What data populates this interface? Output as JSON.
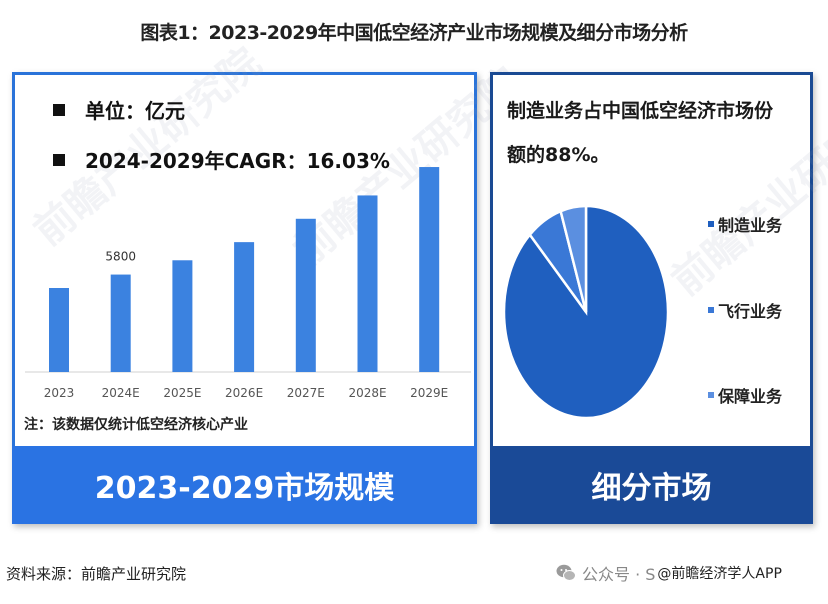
{
  "figure": {
    "title": "图表1：2023-2029年中国低空经济产业市场规模及细分市场分析",
    "source": "资料来源：前瞻产业研究院",
    "wechat_label": "公众号 · S",
    "wechat_handle": "@前瞻经济学人APP",
    "watermark": "前瞻产业研究院"
  },
  "left_panel": {
    "unit_line": "单位：亿元",
    "cagr_line": "2024-2029年CAGR：16.03%",
    "note": "注：该数据仅统计低空经济核心产业",
    "banner": "2023-2029市场规模",
    "bar_color": "#3b82e0",
    "banner_color": "#2a73e3"
  },
  "right_panel": {
    "heading": "制造业务占中国低空经济市场份额的88%。",
    "heading_line1": "制造业务占中国低空经济市场份",
    "heading_line2": "额的88%。",
    "legend": [
      {
        "label": "制造业务",
        "color": "#1f5fbf"
      },
      {
        "label": "飞行业务",
        "color": "#3a78d6"
      },
      {
        "label": "保障业务",
        "color": "#5b8fe0"
      }
    ],
    "banner": "细分市场",
    "banner_color": "#1a4a97"
  },
  "chart_data": [
    {
      "type": "bar",
      "title": "2023-2029市场规模",
      "subtitle": "单位：亿元；2024-2029年CAGR：16.03%",
      "categories": [
        "2023",
        "2024E",
        "2025E",
        "2026E",
        "2027E",
        "2028E",
        "2029E"
      ],
      "values": [
        5000,
        5800,
        6650,
        7730,
        9120,
        10510,
        12200
      ],
      "data_labels": {
        "2024E": "5800"
      },
      "xlabel": "",
      "ylabel": "亿元",
      "ylim": [
        0,
        12500
      ],
      "grid": false,
      "note": "注：该数据仅统计低空经济核心产业"
    },
    {
      "type": "pie",
      "title": "细分市场",
      "annotation": "制造业务占中国低空经济市场份额的88%。",
      "categories": [
        "制造业务",
        "飞行业务",
        "保障业务"
      ],
      "values": [
        88,
        7,
        5
      ],
      "unit": "%",
      "legend_position": "right"
    }
  ]
}
